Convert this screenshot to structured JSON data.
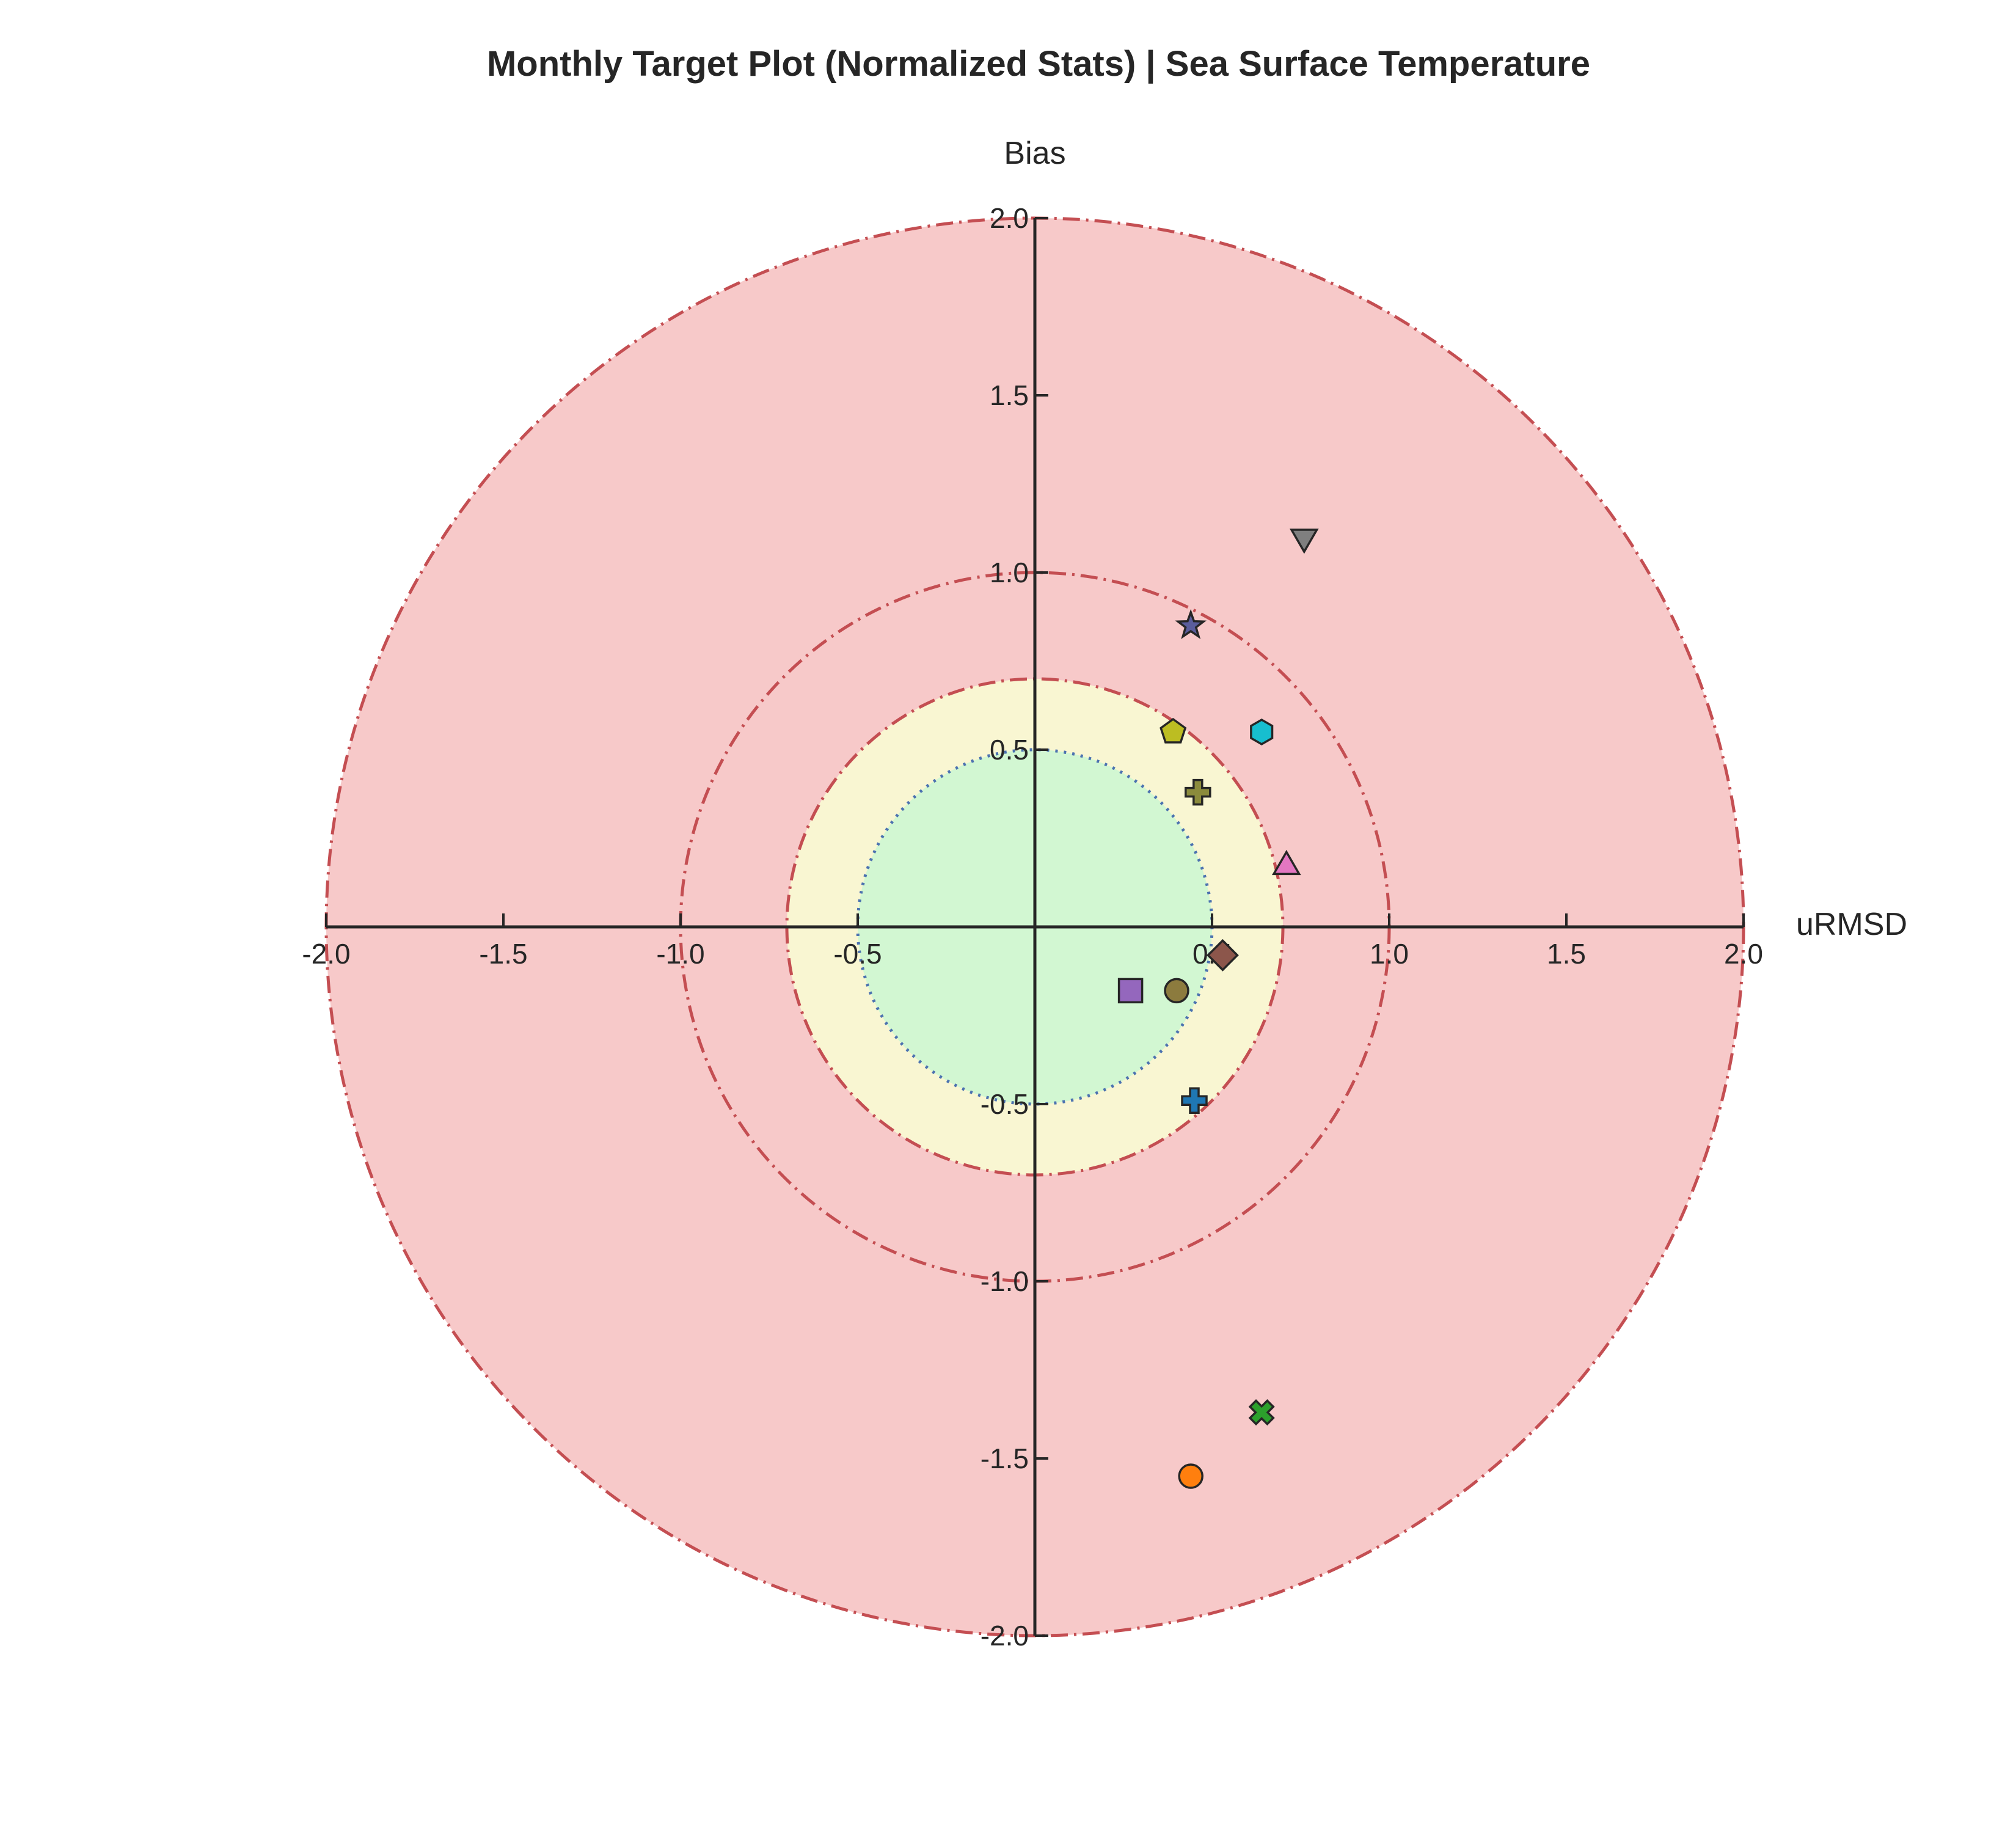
{
  "chart_data": {
    "type": "scatter",
    "title": "Monthly Target Plot (Normalized Stats) | Sea Surface Temperature",
    "xlabel": "uRMSD",
    "ylabel": "Bias",
    "xlim": [
      -2.0,
      2.0
    ],
    "ylim": [
      -2.0,
      2.0
    ],
    "xticks": [
      "-2.0",
      "-1.5",
      "-1.0",
      "-0.5",
      "0.5",
      "1.0",
      "1.5",
      "2.0"
    ],
    "xtick_values": [
      -2.0,
      -1.5,
      -1.0,
      -0.5,
      0.5,
      1.0,
      1.5,
      2.0
    ],
    "yticks": [
      "2.0",
      "1.5",
      "1.0",
      "0.5",
      "-0.5",
      "-1.0",
      "-1.5",
      "-2.0"
    ],
    "ytick_values": [
      2.0,
      1.5,
      1.0,
      0.5,
      -0.5,
      -1.0,
      -1.5,
      -2.0
    ],
    "grid": false,
    "zones": [
      {
        "radius": 2.0,
        "fill": "#f7c9c9",
        "edge": "#c44e52",
        "style": "dashdot"
      },
      {
        "radius": 1.0,
        "fill": "none",
        "edge": "#c44e52",
        "style": "dashdot"
      },
      {
        "radius": 0.7,
        "fill": "#f9f6d2",
        "edge": "#c44e52",
        "style": "dashdot"
      },
      {
        "radius": 0.5,
        "fill": "#d2f7d2",
        "edge": "#4c72b0",
        "style": "dotted"
      }
    ],
    "points": [
      {
        "x": 0.44,
        "y": -1.55,
        "marker": "circle",
        "color": "#ff7f0e"
      },
      {
        "x": 0.64,
        "y": -1.37,
        "marker": "x",
        "color": "#2ca02c"
      },
      {
        "x": 0.45,
        "y": -0.49,
        "marker": "plus",
        "color": "#1f77b4"
      },
      {
        "x": 0.27,
        "y": -0.18,
        "marker": "square",
        "color": "#9467bd"
      },
      {
        "x": 0.4,
        "y": -0.18,
        "marker": "circle",
        "color": "#8c7b3e"
      },
      {
        "x": 0.53,
        "y": -0.08,
        "marker": "diamond",
        "color": "#8c564b"
      },
      {
        "x": 0.71,
        "y": 0.17,
        "marker": "triangle-up",
        "color": "#e377c2"
      },
      {
        "x": 0.46,
        "y": 0.38,
        "marker": "plus",
        "color": "#8b8b3c"
      },
      {
        "x": 0.39,
        "y": 0.55,
        "marker": "pentagon",
        "color": "#bcbd22"
      },
      {
        "x": 0.64,
        "y": 0.55,
        "marker": "hexagon",
        "color": "#17becf"
      },
      {
        "x": 0.44,
        "y": 0.85,
        "marker": "star",
        "color": "#5a5d9c"
      },
      {
        "x": 0.76,
        "y": 1.1,
        "marker": "triangle-down",
        "color": "#7f7f7f"
      }
    ]
  }
}
